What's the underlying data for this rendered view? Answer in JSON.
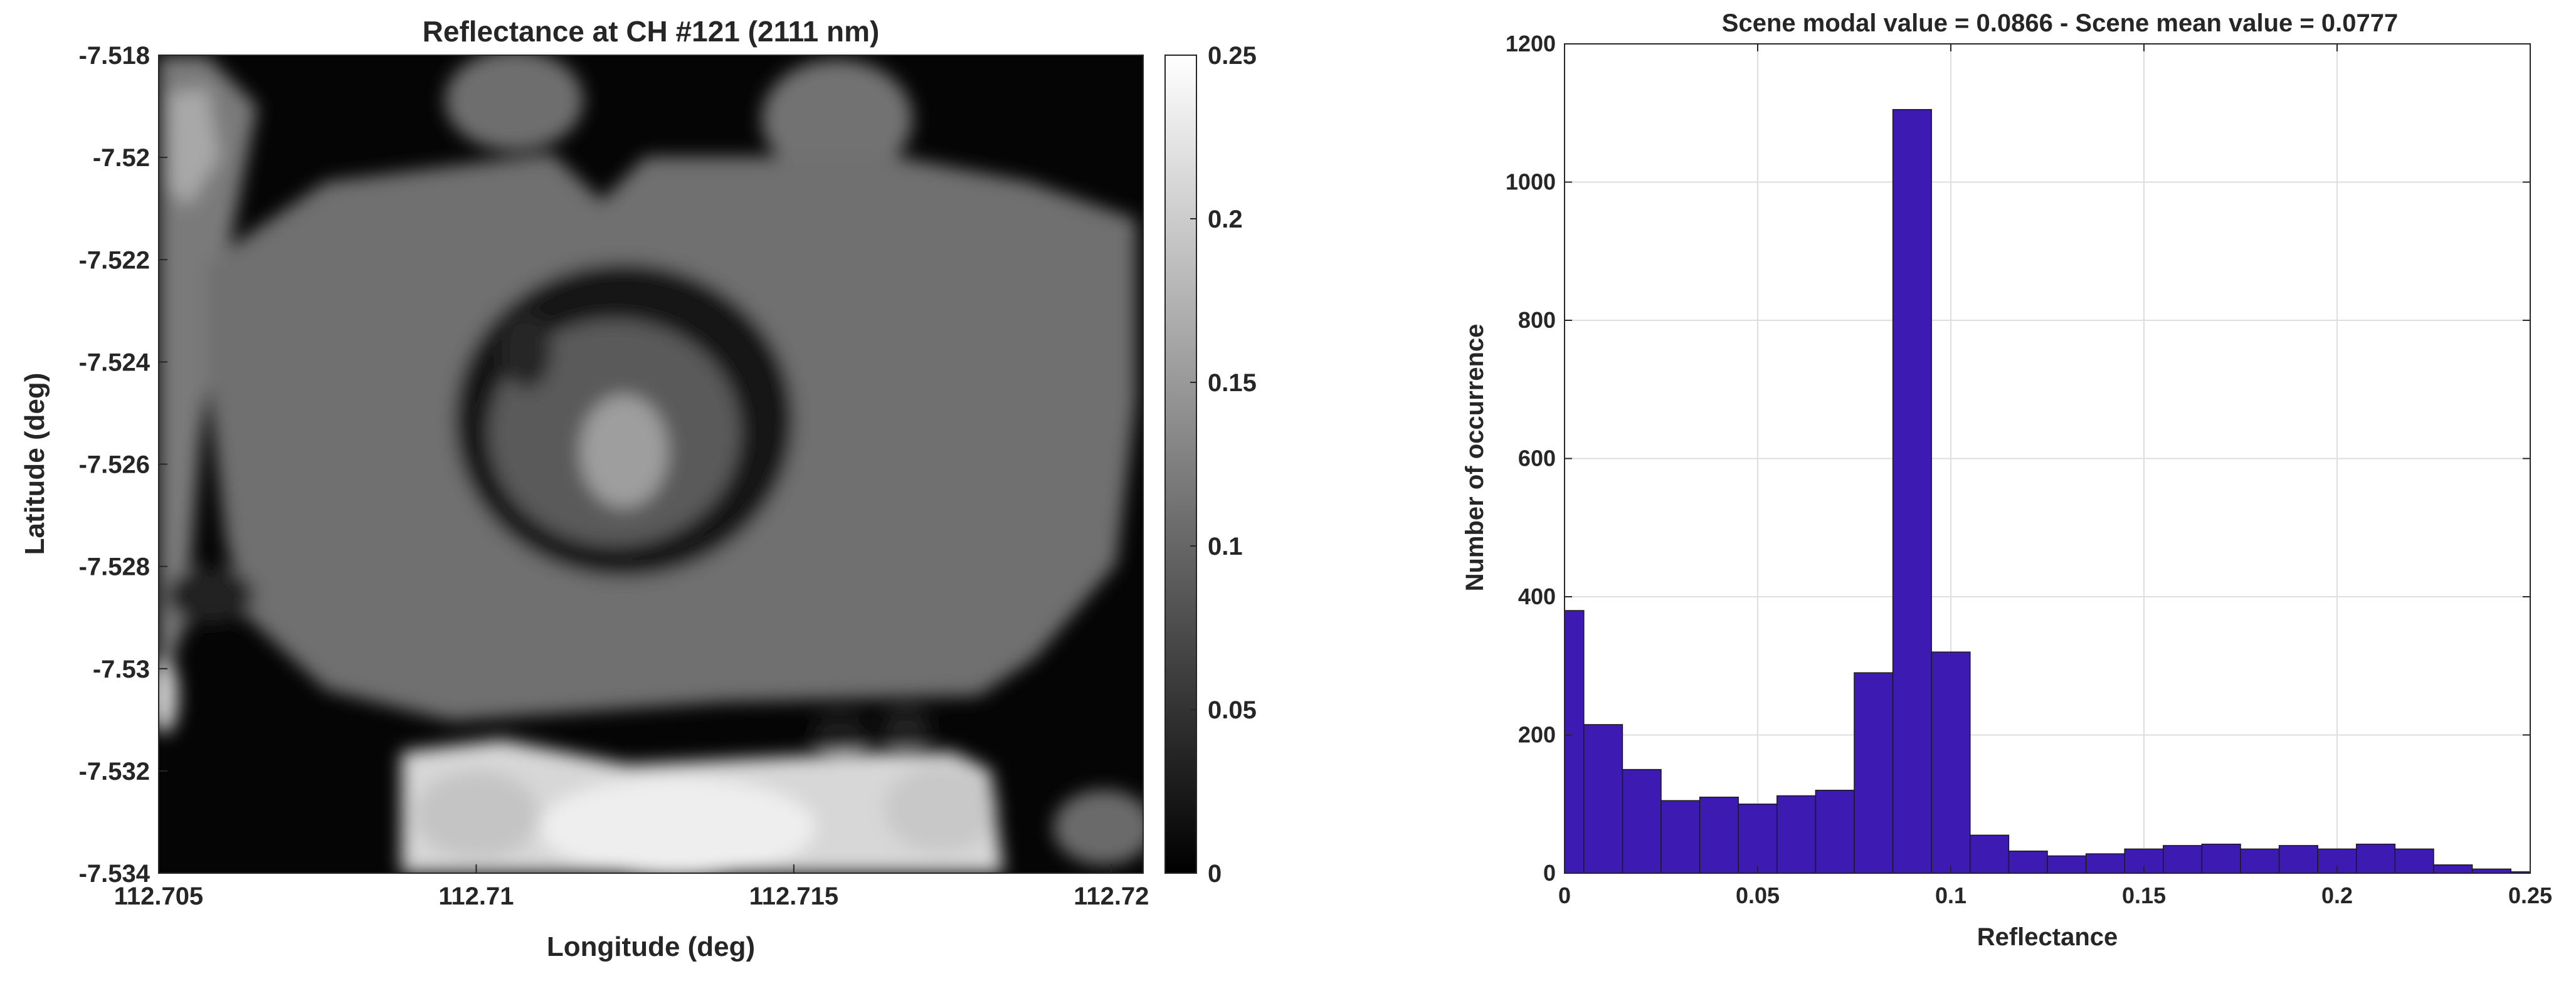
{
  "chart_data": [
    {
      "type": "heatmap",
      "title": "Reflectance at CH #121 (2111 nm)",
      "xlabel": "Longitude (deg)",
      "ylabel": "Latitude (deg)",
      "xlim": [
        112.705,
        112.7205
      ],
      "ylim": [
        -7.534,
        -7.518
      ],
      "x_ticks": [
        "112.705",
        "112.71",
        "112.715",
        "112.72"
      ],
      "x_tick_values": [
        112.705,
        112.71,
        112.715,
        112.72
      ],
      "y_ticks": [
        "-7.518",
        "-7.52",
        "-7.522",
        "-7.524",
        "-7.526",
        "-7.528",
        "-7.53",
        "-7.532",
        "-7.534"
      ],
      "y_tick_values": [
        -7.518,
        -7.52,
        -7.522,
        -7.524,
        -7.526,
        -7.528,
        -7.53,
        -7.532,
        -7.534
      ],
      "colormap": "gray",
      "clim": [
        0,
        0.25
      ],
      "colorbar_ticks": [
        "0.25",
        "0.2",
        "0.15",
        "0.1",
        "0.05",
        "0"
      ],
      "colorbar_tick_values": [
        0.25,
        0.2,
        0.15,
        0.1,
        0.05,
        0
      ]
    },
    {
      "type": "bar",
      "title": "Scene modal value = 0.0866 - Scene mean value = 0.0777",
      "xlabel": "Reflectance",
      "ylabel": "Number of occurrence",
      "xlim": [
        0,
        0.25
      ],
      "ylim": [
        0,
        1200
      ],
      "grid": true,
      "bar_color": "#3d1bb3",
      "x_ticks": [
        "0",
        "0.05",
        "0.1",
        "0.15",
        "0.2",
        "0.25"
      ],
      "x_tick_values": [
        0,
        0.05,
        0.1,
        0.15,
        0.2,
        0.25
      ],
      "y_ticks": [
        "0",
        "200",
        "400",
        "600",
        "800",
        "1000",
        "1200"
      ],
      "y_tick_values": [
        0,
        200,
        400,
        600,
        800,
        1000,
        1200
      ],
      "bin_edges": [
        0,
        0.005,
        0.015,
        0.025,
        0.035,
        0.045,
        0.055,
        0.065,
        0.075,
        0.085,
        0.095,
        0.105,
        0.115,
        0.125,
        0.135,
        0.145,
        0.155,
        0.165,
        0.175,
        0.185,
        0.195,
        0.205,
        0.215,
        0.225,
        0.235,
        0.245,
        0.25
      ],
      "values": [
        380,
        215,
        150,
        105,
        110,
        100,
        112,
        120,
        290,
        1105,
        320,
        55,
        32,
        25,
        28,
        35,
        40,
        42,
        35,
        40,
        35,
        42,
        35,
        12,
        6,
        2
      ]
    }
  ]
}
